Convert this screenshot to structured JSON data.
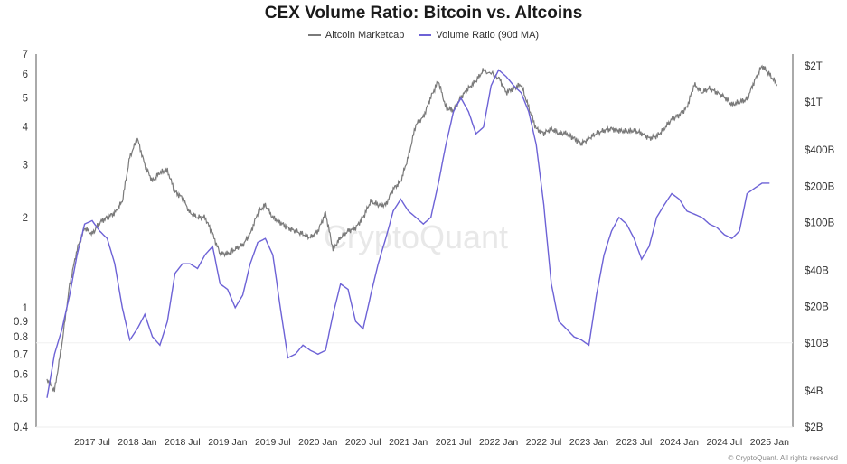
{
  "chart_data": {
    "type": "line",
    "title": "CEX Volume Ratio: Bitcoin vs. Altcoins",
    "watermark": "CryptoQuant",
    "footer": "© CryptoQuant. All rights reserved",
    "left_axis": {
      "scale": "log",
      "range": [
        0.4,
        7
      ],
      "ticks": [
        "0.4",
        "0.5",
        "0.6",
        "0.7",
        "0.8",
        "0.9",
        "1",
        "2",
        "3",
        "4",
        "5",
        "6",
        "7"
      ]
    },
    "right_axis": {
      "scale": "log",
      "range": [
        2000000000.0,
        2500000000000.0
      ],
      "ticks": [
        "$2B",
        "$4B",
        "$10B",
        "$20B",
        "$40B",
        "$100B",
        "$200B",
        "$400B",
        "$1T",
        "$2T"
      ]
    },
    "x_ticks": [
      "2017 Jul",
      "2018 Jan",
      "2018 Jul",
      "2019 Jan",
      "2019 Jul",
      "2020 Jan",
      "2020 Jul",
      "2021 Jan",
      "2021 Jul",
      "2022 Jan",
      "2022 Jul",
      "2023 Jan",
      "2023 Jul",
      "2024 Jan",
      "2024 Jul",
      "2025 Jan"
    ],
    "series": [
      {
        "name": "Altcoin Marketcap",
        "axis": "right",
        "color": "#7a7a7a",
        "points": [
          [
            "2017-01",
            0.005
          ],
          [
            "2017-02",
            0.004
          ],
          [
            "2017-03",
            0.01
          ],
          [
            "2017-04",
            0.03
          ],
          [
            "2017-05",
            0.06
          ],
          [
            "2017-06",
            0.09
          ],
          [
            "2017-07",
            0.08
          ],
          [
            "2017-08",
            0.1
          ],
          [
            "2017-09",
            0.11
          ],
          [
            "2017-10",
            0.12
          ],
          [
            "2017-11",
            0.15
          ],
          [
            "2017-12",
            0.35
          ],
          [
            "2018-01",
            0.5
          ],
          [
            "2018-02",
            0.3
          ],
          [
            "2018-03",
            0.22
          ],
          [
            "2018-04",
            0.26
          ],
          [
            "2018-05",
            0.27
          ],
          [
            "2018-06",
            0.18
          ],
          [
            "2018-07",
            0.16
          ],
          [
            "2018-08",
            0.12
          ],
          [
            "2018-09",
            0.11
          ],
          [
            "2018-10",
            0.11
          ],
          [
            "2018-11",
            0.08
          ],
          [
            "2018-12",
            0.055
          ],
          [
            "2019-01",
            0.055
          ],
          [
            "2019-02",
            0.06
          ],
          [
            "2019-03",
            0.065
          ],
          [
            "2019-04",
            0.08
          ],
          [
            "2019-05",
            0.12
          ],
          [
            "2019-06",
            0.14
          ],
          [
            "2019-07",
            0.11
          ],
          [
            "2019-08",
            0.1
          ],
          [
            "2019-09",
            0.09
          ],
          [
            "2019-10",
            0.085
          ],
          [
            "2019-11",
            0.08
          ],
          [
            "2019-12",
            0.075
          ],
          [
            "2020-01",
            0.085
          ],
          [
            "2020-02",
            0.12
          ],
          [
            "2020-03",
            0.06
          ],
          [
            "2020-04",
            0.075
          ],
          [
            "2020-05",
            0.085
          ],
          [
            "2020-06",
            0.09
          ],
          [
            "2020-07",
            0.11
          ],
          [
            "2020-08",
            0.15
          ],
          [
            "2020-09",
            0.14
          ],
          [
            "2020-10",
            0.14
          ],
          [
            "2020-11",
            0.19
          ],
          [
            "2020-12",
            0.22
          ],
          [
            "2021-01",
            0.35
          ],
          [
            "2021-02",
            0.65
          ],
          [
            "2021-03",
            0.75
          ],
          [
            "2021-04",
            1.1
          ],
          [
            "2021-05",
            1.5
          ],
          [
            "2021-06",
            0.9
          ],
          [
            "2021-07",
            0.85
          ],
          [
            "2021-08",
            1.1
          ],
          [
            "2021-09",
            1.3
          ],
          [
            "2021-10",
            1.5
          ],
          [
            "2021-11",
            1.85
          ],
          [
            "2022-01",
            1.6
          ],
          [
            "2022-02",
            1.2
          ],
          [
            "2022-03",
            1.3
          ],
          [
            "2022-04",
            1.4
          ],
          [
            "2022-05",
            0.9
          ],
          [
            "2022-06",
            0.6
          ],
          [
            "2022-07",
            0.55
          ],
          [
            "2022-08",
            0.6
          ],
          [
            "2022-09",
            0.55
          ],
          [
            "2022-10",
            0.55
          ],
          [
            "2022-11",
            0.5
          ],
          [
            "2022-12",
            0.45
          ],
          [
            "2023-01",
            0.5
          ],
          [
            "2023-02",
            0.55
          ],
          [
            "2023-03",
            0.58
          ],
          [
            "2023-04",
            0.6
          ],
          [
            "2023-05",
            0.58
          ],
          [
            "2023-06",
            0.57
          ],
          [
            "2023-07",
            0.58
          ],
          [
            "2023-08",
            0.55
          ],
          [
            "2023-09",
            0.5
          ],
          [
            "2023-10",
            0.52
          ],
          [
            "2023-11",
            0.6
          ],
          [
            "2023-12",
            0.72
          ],
          [
            "2024-01",
            0.78
          ],
          [
            "2024-02",
            0.9
          ],
          [
            "2024-03",
            1.4
          ],
          [
            "2024-04",
            1.2
          ],
          [
            "2024-05",
            1.3
          ],
          [
            "2024-06",
            1.2
          ],
          [
            "2024-07",
            1.1
          ],
          [
            "2024-08",
            0.95
          ],
          [
            "2024-09",
            1.0
          ],
          [
            "2024-10",
            1.05
          ],
          [
            "2024-11",
            1.5
          ],
          [
            "2024-12",
            2.0
          ],
          [
            "2025-01",
            1.7
          ],
          [
            "2025-02",
            1.4
          ]
        ]
      },
      {
        "name": "Volume Ratio (90d MA)",
        "axis": "left",
        "color": "#6d62d6",
        "points": [
          [
            "2017-01",
            0.5
          ],
          [
            "2017-02",
            0.7
          ],
          [
            "2017-03",
            0.85
          ],
          [
            "2017-04",
            1.1
          ],
          [
            "2017-05",
            1.5
          ],
          [
            "2017-06",
            1.9
          ],
          [
            "2017-07",
            1.95
          ],
          [
            "2017-08",
            1.8
          ],
          [
            "2017-09",
            1.7
          ],
          [
            "2017-10",
            1.4
          ],
          [
            "2017-11",
            1.0
          ],
          [
            "2017-12",
            0.78
          ],
          [
            "2018-01",
            0.85
          ],
          [
            "2018-02",
            0.95
          ],
          [
            "2018-03",
            0.8
          ],
          [
            "2018-04",
            0.75
          ],
          [
            "2018-05",
            0.9
          ],
          [
            "2018-06",
            1.3
          ],
          [
            "2018-07",
            1.4
          ],
          [
            "2018-08",
            1.4
          ],
          [
            "2018-09",
            1.35
          ],
          [
            "2018-10",
            1.5
          ],
          [
            "2018-11",
            1.6
          ],
          [
            "2018-12",
            1.2
          ],
          [
            "2019-01",
            1.15
          ],
          [
            "2019-02",
            1.0
          ],
          [
            "2019-03",
            1.1
          ],
          [
            "2019-04",
            1.4
          ],
          [
            "2019-05",
            1.65
          ],
          [
            "2019-06",
            1.7
          ],
          [
            "2019-07",
            1.5
          ],
          [
            "2019-08",
            1.0
          ],
          [
            "2019-09",
            0.68
          ],
          [
            "2019-10",
            0.7
          ],
          [
            "2019-11",
            0.75
          ],
          [
            "2019-12",
            0.72
          ],
          [
            "2020-01",
            0.7
          ],
          [
            "2020-02",
            0.72
          ],
          [
            "2020-03",
            0.95
          ],
          [
            "2020-04",
            1.2
          ],
          [
            "2020-05",
            1.15
          ],
          [
            "2020-06",
            0.9
          ],
          [
            "2020-07",
            0.85
          ],
          [
            "2020-08",
            1.1
          ],
          [
            "2020-09",
            1.4
          ],
          [
            "2020-10",
            1.7
          ],
          [
            "2020-11",
            2.1
          ],
          [
            "2020-12",
            2.3
          ],
          [
            "2021-01",
            2.1
          ],
          [
            "2021-02",
            2.0
          ],
          [
            "2021-03",
            1.9
          ],
          [
            "2021-04",
            2.0
          ],
          [
            "2021-05",
            2.6
          ],
          [
            "2021-06",
            3.5
          ],
          [
            "2021-07",
            4.5
          ],
          [
            "2021-08",
            5.0
          ],
          [
            "2021-09",
            4.5
          ],
          [
            "2021-10",
            3.8
          ],
          [
            "2021-11",
            4.0
          ],
          [
            "2021-12",
            5.5
          ],
          [
            "2022-01",
            6.2
          ],
          [
            "2022-02",
            5.9
          ],
          [
            "2022-03",
            5.5
          ],
          [
            "2022-04",
            5.2
          ],
          [
            "2022-05",
            4.5
          ],
          [
            "2022-06",
            3.5
          ],
          [
            "2022-07",
            2.2
          ],
          [
            "2022-08",
            1.2
          ],
          [
            "2022-09",
            0.9
          ],
          [
            "2022-10",
            0.85
          ],
          [
            "2022-11",
            0.8
          ],
          [
            "2022-12",
            0.78
          ],
          [
            "2023-01",
            0.75
          ],
          [
            "2023-02",
            1.1
          ],
          [
            "2023-03",
            1.5
          ],
          [
            "2023-04",
            1.8
          ],
          [
            "2023-05",
            2.0
          ],
          [
            "2023-06",
            1.9
          ],
          [
            "2023-07",
            1.7
          ],
          [
            "2023-08",
            1.45
          ],
          [
            "2023-09",
            1.6
          ],
          [
            "2023-10",
            2.0
          ],
          [
            "2023-11",
            2.2
          ],
          [
            "2023-12",
            2.4
          ],
          [
            "2024-01",
            2.3
          ],
          [
            "2024-02",
            2.1
          ],
          [
            "2024-03",
            2.05
          ],
          [
            "2024-04",
            2.0
          ],
          [
            "2024-05",
            1.9
          ],
          [
            "2024-06",
            1.85
          ],
          [
            "2024-07",
            1.75
          ],
          [
            "2024-08",
            1.7
          ],
          [
            "2024-09",
            1.8
          ],
          [
            "2024-10",
            2.4
          ],
          [
            "2024-11",
            2.5
          ],
          [
            "2024-12",
            2.6
          ],
          [
            "2025-01",
            2.6
          ]
        ]
      }
    ]
  }
}
